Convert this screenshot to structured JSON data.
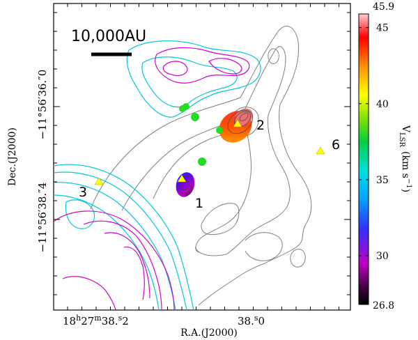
{
  "chart_data": {
    "type": "contour-map",
    "xlabel": "R.A.(J2000)",
    "ylabel": "Dec.(J2000)",
    "x_ticks": [
      {
        "label_parts": [
          "18",
          "h",
          "27",
          "m",
          "38",
          ".",
          "s",
          "2"
        ],
        "value": "18h27m38.2s"
      },
      {
        "label_parts": [
          "38",
          ".",
          "s",
          "0"
        ],
        "value": "38.0s"
      }
    ],
    "y_ticks": [
      {
        "label": "−11°56′36.″0",
        "value": "-11:56:36.0"
      },
      {
        "label": "−11°56′38.″4",
        "value": "-11:56:38.4"
      }
    ],
    "scale_bar": {
      "label": "10,000AU",
      "au": 10000
    },
    "colorbar": {
      "title": "V",
      "title_sub": "LSR",
      "title_unit": "(km s",
      "title_exp": "−1",
      "title_close": ")",
      "min": 26.8,
      "max": 45.9,
      "min_label": "26.8",
      "max_label": "45.9",
      "ticks": [
        {
          "value": 30,
          "label": "30"
        },
        {
          "value": 35,
          "label": "35"
        },
        {
          "value": 40,
          "label": "40"
        },
        {
          "value": 45,
          "label": "45"
        }
      ]
    },
    "sources": [
      {
        "id": "1",
        "label": "1"
      },
      {
        "id": "2",
        "label": "2"
      },
      {
        "id": "3",
        "label": "3"
      },
      {
        "id": "6",
        "label": "6"
      }
    ],
    "contour_colors": {
      "gray": "#808080",
      "cyan": "#00c8d8",
      "magenta": "#d000d0"
    },
    "marker_colors": {
      "triangle": "#ffff00",
      "green_spot": "#22dd22"
    }
  }
}
